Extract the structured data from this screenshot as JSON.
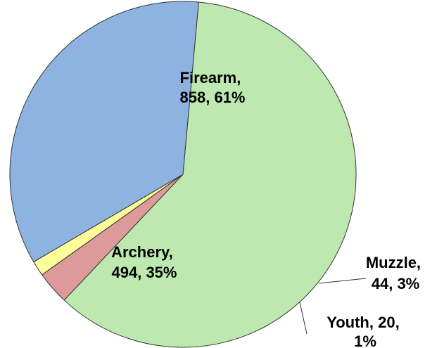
{
  "chart_data": {
    "type": "pie",
    "slices": [
      {
        "label": "Firearm",
        "value": 858,
        "percent": "61%",
        "text_line1": "Firearm,",
        "text_line2": "858, 61%",
        "color": "#bde9b0"
      },
      {
        "label": "Muzzle",
        "value": 44,
        "percent": "3%",
        "text_line1": "Muzzle,",
        "text_line2": "44, 3%",
        "color": "#dc9a98"
      },
      {
        "label": "Youth",
        "value": 20,
        "percent": "1%",
        "text_line1": "Youth, 20,",
        "text_line2": "1%",
        "color": "#fdfd99"
      },
      {
        "label": "Archery",
        "value": 494,
        "percent": "35%",
        "text_line1": "Archery,",
        "text_line2": "494, 35%",
        "color": "#8fb3e0"
      }
    ],
    "legend": "none",
    "labels": "data labels with category, value and percentage"
  }
}
